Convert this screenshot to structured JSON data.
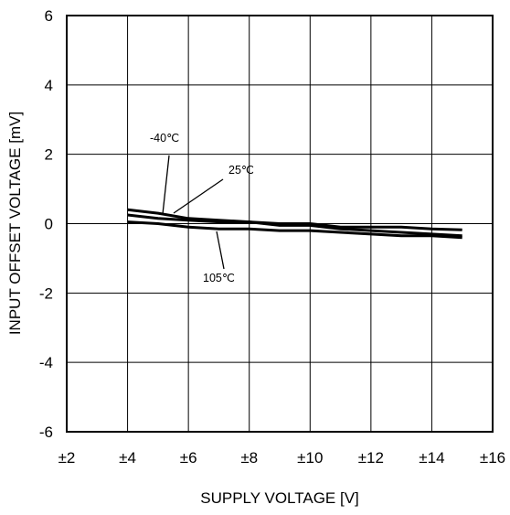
{
  "chart_data": {
    "type": "line",
    "title": "",
    "xlabel": "SUPPLY VOLTAGE [V]",
    "ylabel": "INPUT OFFSET VOLTAGE [mV]",
    "xlim": [
      2,
      16
    ],
    "ylim": [
      -6,
      6
    ],
    "x_ticks": [
      2,
      4,
      6,
      8,
      10,
      12,
      14,
      16
    ],
    "x_tick_labels": [
      "±2",
      "±4",
      "±6",
      "±8",
      "±10",
      "±12",
      "±14",
      "±16"
    ],
    "y_ticks": [
      -6,
      -4,
      -2,
      0,
      2,
      4,
      6
    ],
    "y_tick_labels": [
      "-6",
      "-4",
      "-2",
      "0",
      "2",
      "4",
      "6"
    ],
    "grid": true,
    "legend": "none",
    "series": [
      {
        "name": "-40℃",
        "x": [
          4,
          5,
          6,
          7,
          8,
          9,
          10,
          11,
          12,
          13,
          14,
          15
        ],
        "y": [
          0.4,
          0.3,
          0.15,
          0.1,
          0.05,
          0.0,
          0.0,
          -0.1,
          -0.1,
          -0.1,
          -0.15,
          -0.18
        ]
      },
      {
        "name": "25℃",
        "x": [
          4,
          5,
          6,
          7,
          8,
          9,
          10,
          11,
          12,
          13,
          14,
          15
        ],
        "y": [
          0.25,
          0.15,
          0.1,
          0.05,
          0.05,
          -0.05,
          -0.05,
          -0.15,
          -0.2,
          -0.25,
          -0.3,
          -0.35
        ]
      },
      {
        "name": "105℃",
        "x": [
          4,
          5,
          6,
          7,
          8,
          9,
          10,
          11,
          12,
          13,
          14,
          15
        ],
        "y": [
          0.05,
          0.0,
          -0.1,
          -0.15,
          -0.15,
          -0.2,
          -0.2,
          -0.25,
          -0.3,
          -0.35,
          -0.35,
          -0.4
        ]
      }
    ],
    "annotations": [
      "-40℃",
      "25℃",
      "105℃"
    ]
  }
}
